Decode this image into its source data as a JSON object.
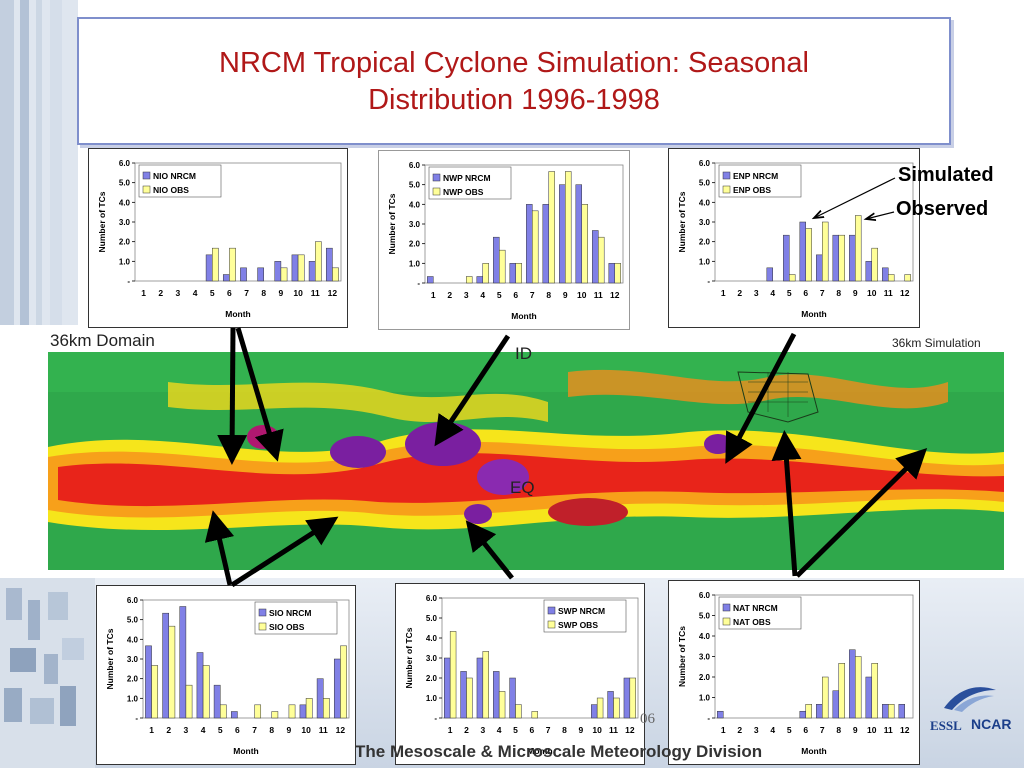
{
  "slide": {
    "title_line1": "NRCM Tropical Cyclone Simulation: Seasonal",
    "title_line2": "Distribution 1996-1998",
    "callout_simulated": "Simulated",
    "callout_observed": "Observed",
    "map_left_label": "36km Domain",
    "map_right_label": "36km Simulation",
    "map_label_id": "ID",
    "map_label_eq": "EQ",
    "bottom_banner": "The Mesoscale & Microscale Meteorology Division",
    "slide_number": "06",
    "logo_essl": "ESSL",
    "logo_ncar": "NCAR"
  },
  "colors": {
    "nrcm_bar": "#8080e6",
    "obs_bar": "#ffff99",
    "title": "#b01818"
  },
  "chart_data": [
    {
      "id": "nio",
      "type": "bar",
      "categories": [
        "1",
        "2",
        "3",
        "4",
        "5",
        "6",
        "7",
        "8",
        "9",
        "10",
        "11",
        "12"
      ],
      "series": [
        {
          "name": "NIO NRCM",
          "values": [
            0,
            0,
            0,
            0,
            1.33,
            0.33,
            0.67,
            0.67,
            1.0,
            1.33,
            1.0,
            1.67
          ]
        },
        {
          "name": "NIO OBS",
          "values": [
            0,
            0,
            0,
            0,
            1.67,
            1.67,
            0,
            0,
            0.67,
            1.33,
            2.0,
            0.67
          ]
        }
      ],
      "yticks": [
        "-",
        "1.0",
        "2.0",
        "3.0",
        "4.0",
        "5.0",
        "6.0"
      ],
      "ylim": [
        0,
        6
      ],
      "xlabel": "Month",
      "ylabel": "Number of TCs",
      "legend": "top-left"
    },
    {
      "id": "nwp",
      "type": "bar",
      "categories": [
        "1",
        "2",
        "3",
        "4",
        "5",
        "6",
        "7",
        "8",
        "9",
        "10",
        "11",
        "12"
      ],
      "series": [
        {
          "name": "NWP NRCM",
          "values": [
            0.33,
            0,
            0,
            0.33,
            2.33,
            1.0,
            4.0,
            4.0,
            5.0,
            5.0,
            2.67,
            1.0
          ]
        },
        {
          "name": "NWP OBS",
          "values": [
            0,
            0,
            0.33,
            1.0,
            1.67,
            1.0,
            3.67,
            5.67,
            5.67,
            4.0,
            2.33,
            1.0
          ]
        }
      ],
      "yticks": [
        "-",
        "1.0",
        "2.0",
        "3.0",
        "4.0",
        "5.0",
        "6.0"
      ],
      "ylim": [
        0,
        6
      ],
      "xlabel": "Month",
      "ylabel": "Number of TCs",
      "legend": "top-left"
    },
    {
      "id": "enp",
      "type": "bar",
      "categories": [
        "1",
        "2",
        "3",
        "4",
        "5",
        "6",
        "7",
        "8",
        "9",
        "10",
        "11",
        "12"
      ],
      "series": [
        {
          "name": "ENP NRCM",
          "values": [
            0,
            0,
            0,
            0.67,
            2.33,
            3.0,
            1.33,
            2.33,
            2.33,
            1.0,
            0.67,
            0
          ]
        },
        {
          "name": "ENP OBS",
          "values": [
            0,
            0,
            0,
            0,
            0.33,
            2.67,
            3.0,
            2.33,
            3.33,
            1.67,
            0.33,
            0.33
          ]
        }
      ],
      "yticks": [
        "-",
        "1.0",
        "2.0",
        "3.0",
        "4.0",
        "5.0",
        "6.0"
      ],
      "ylim": [
        0,
        6
      ],
      "xlabel": "Month",
      "ylabel": "Number of TCs",
      "legend": "top-left"
    },
    {
      "id": "sio",
      "type": "bar",
      "categories": [
        "1",
        "2",
        "3",
        "4",
        "5",
        "6",
        "7",
        "8",
        "9",
        "10",
        "11",
        "12"
      ],
      "series": [
        {
          "name": "SIO NRCM",
          "values": [
            3.67,
            5.33,
            5.67,
            3.33,
            1.67,
            0.33,
            0,
            0,
            0,
            0.67,
            2.0,
            3.0
          ]
        },
        {
          "name": "SIO OBS",
          "values": [
            2.67,
            4.67,
            1.67,
            2.67,
            0.67,
            0,
            0.67,
            0.33,
            0.67,
            1.0,
            1.0,
            3.67
          ]
        }
      ],
      "yticks": [
        "-",
        "1.0",
        "2.0",
        "3.0",
        "4.0",
        "5.0",
        "6.0"
      ],
      "ylim": [
        0,
        6
      ],
      "xlabel": "Month",
      "ylabel": "Number of TCs",
      "legend": "top-right"
    },
    {
      "id": "swp",
      "type": "bar",
      "categories": [
        "1",
        "2",
        "3",
        "4",
        "5",
        "6",
        "7",
        "8",
        "9",
        "10",
        "11",
        "12"
      ],
      "series": [
        {
          "name": "SWP NRCM",
          "values": [
            3.0,
            2.33,
            3.0,
            2.33,
            2.0,
            0,
            0,
            0,
            0,
            0.67,
            1.33,
            2.0
          ]
        },
        {
          "name": "SWP OBS",
          "values": [
            4.33,
            2.0,
            3.33,
            1.33,
            0.67,
            0.33,
            0,
            0,
            0,
            1.0,
            1.0,
            2.0
          ]
        }
      ],
      "yticks": [
        "-",
        "1.0",
        "2.0",
        "3.0",
        "4.0",
        "5.0",
        "6.0"
      ],
      "ylim": [
        0,
        6
      ],
      "xlabel": "Month",
      "ylabel": "Number of TCs",
      "legend": "top-right"
    },
    {
      "id": "nat",
      "type": "bar",
      "categories": [
        "1",
        "2",
        "3",
        "4",
        "5",
        "6",
        "7",
        "8",
        "9",
        "10",
        "11",
        "12"
      ],
      "series": [
        {
          "name": "NAT NRCM",
          "values": [
            0.33,
            0,
            0,
            0,
            0,
            0.33,
            0.67,
            1.33,
            3.33,
            2.0,
            0.67,
            0.67
          ]
        },
        {
          "name": "NAT OBS",
          "values": [
            0,
            0,
            0,
            0,
            0,
            0.67,
            2.0,
            2.67,
            3.0,
            2.67,
            0.67,
            0
          ]
        }
      ],
      "yticks": [
        "-",
        "1.0",
        "2.0",
        "3.0",
        "4.0",
        "5.0",
        "6.0"
      ],
      "ylim": [
        0,
        6
      ],
      "xlabel": "Month",
      "ylabel": "Number of TCs",
      "legend": "top-left"
    }
  ]
}
